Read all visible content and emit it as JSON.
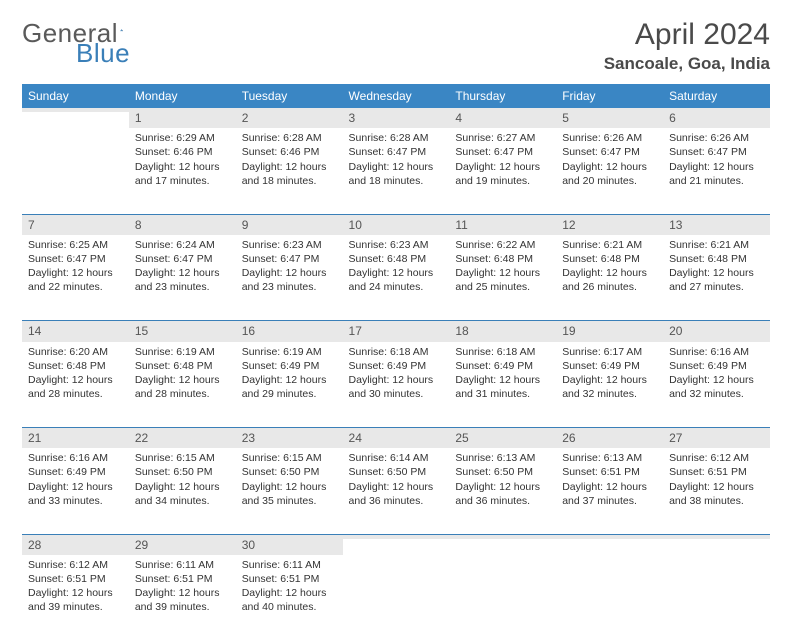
{
  "logo": {
    "text1": "General",
    "text2": "Blue"
  },
  "title": "April 2024",
  "location": "Sancoale, Goa, India",
  "colors": {
    "header_bg": "#3a86c4",
    "header_text": "#ffffff",
    "daynum_bg": "#e8e8e8",
    "rule": "#3a7fb8",
    "logo_gray": "#5a5a5a",
    "logo_blue": "#3a7fb8"
  },
  "weekdays": [
    "Sunday",
    "Monday",
    "Tuesday",
    "Wednesday",
    "Thursday",
    "Friday",
    "Saturday"
  ],
  "weeks": [
    {
      "days": [
        {
          "num": "",
          "lines": []
        },
        {
          "num": "1",
          "lines": [
            "Sunrise: 6:29 AM",
            "Sunset: 6:46 PM",
            "Daylight: 12 hours and 17 minutes."
          ]
        },
        {
          "num": "2",
          "lines": [
            "Sunrise: 6:28 AM",
            "Sunset: 6:46 PM",
            "Daylight: 12 hours and 18 minutes."
          ]
        },
        {
          "num": "3",
          "lines": [
            "Sunrise: 6:28 AM",
            "Sunset: 6:47 PM",
            "Daylight: 12 hours and 18 minutes."
          ]
        },
        {
          "num": "4",
          "lines": [
            "Sunrise: 6:27 AM",
            "Sunset: 6:47 PM",
            "Daylight: 12 hours and 19 minutes."
          ]
        },
        {
          "num": "5",
          "lines": [
            "Sunrise: 6:26 AM",
            "Sunset: 6:47 PM",
            "Daylight: 12 hours and 20 minutes."
          ]
        },
        {
          "num": "6",
          "lines": [
            "Sunrise: 6:26 AM",
            "Sunset: 6:47 PM",
            "Daylight: 12 hours and 21 minutes."
          ]
        }
      ]
    },
    {
      "days": [
        {
          "num": "7",
          "lines": [
            "Sunrise: 6:25 AM",
            "Sunset: 6:47 PM",
            "Daylight: 12 hours and 22 minutes."
          ]
        },
        {
          "num": "8",
          "lines": [
            "Sunrise: 6:24 AM",
            "Sunset: 6:47 PM",
            "Daylight: 12 hours and 23 minutes."
          ]
        },
        {
          "num": "9",
          "lines": [
            "Sunrise: 6:23 AM",
            "Sunset: 6:47 PM",
            "Daylight: 12 hours and 23 minutes."
          ]
        },
        {
          "num": "10",
          "lines": [
            "Sunrise: 6:23 AM",
            "Sunset: 6:48 PM",
            "Daylight: 12 hours and 24 minutes."
          ]
        },
        {
          "num": "11",
          "lines": [
            "Sunrise: 6:22 AM",
            "Sunset: 6:48 PM",
            "Daylight: 12 hours and 25 minutes."
          ]
        },
        {
          "num": "12",
          "lines": [
            "Sunrise: 6:21 AM",
            "Sunset: 6:48 PM",
            "Daylight: 12 hours and 26 minutes."
          ]
        },
        {
          "num": "13",
          "lines": [
            "Sunrise: 6:21 AM",
            "Sunset: 6:48 PM",
            "Daylight: 12 hours and 27 minutes."
          ]
        }
      ]
    },
    {
      "days": [
        {
          "num": "14",
          "lines": [
            "Sunrise: 6:20 AM",
            "Sunset: 6:48 PM",
            "Daylight: 12 hours and 28 minutes."
          ]
        },
        {
          "num": "15",
          "lines": [
            "Sunrise: 6:19 AM",
            "Sunset: 6:48 PM",
            "Daylight: 12 hours and 28 minutes."
          ]
        },
        {
          "num": "16",
          "lines": [
            "Sunrise: 6:19 AM",
            "Sunset: 6:49 PM",
            "Daylight: 12 hours and 29 minutes."
          ]
        },
        {
          "num": "17",
          "lines": [
            "Sunrise: 6:18 AM",
            "Sunset: 6:49 PM",
            "Daylight: 12 hours and 30 minutes."
          ]
        },
        {
          "num": "18",
          "lines": [
            "Sunrise: 6:18 AM",
            "Sunset: 6:49 PM",
            "Daylight: 12 hours and 31 minutes."
          ]
        },
        {
          "num": "19",
          "lines": [
            "Sunrise: 6:17 AM",
            "Sunset: 6:49 PM",
            "Daylight: 12 hours and 32 minutes."
          ]
        },
        {
          "num": "20",
          "lines": [
            "Sunrise: 6:16 AM",
            "Sunset: 6:49 PM",
            "Daylight: 12 hours and 32 minutes."
          ]
        }
      ]
    },
    {
      "days": [
        {
          "num": "21",
          "lines": [
            "Sunrise: 6:16 AM",
            "Sunset: 6:49 PM",
            "Daylight: 12 hours and 33 minutes."
          ]
        },
        {
          "num": "22",
          "lines": [
            "Sunrise: 6:15 AM",
            "Sunset: 6:50 PM",
            "Daylight: 12 hours and 34 minutes."
          ]
        },
        {
          "num": "23",
          "lines": [
            "Sunrise: 6:15 AM",
            "Sunset: 6:50 PM",
            "Daylight: 12 hours and 35 minutes."
          ]
        },
        {
          "num": "24",
          "lines": [
            "Sunrise: 6:14 AM",
            "Sunset: 6:50 PM",
            "Daylight: 12 hours and 36 minutes."
          ]
        },
        {
          "num": "25",
          "lines": [
            "Sunrise: 6:13 AM",
            "Sunset: 6:50 PM",
            "Daylight: 12 hours and 36 minutes."
          ]
        },
        {
          "num": "26",
          "lines": [
            "Sunrise: 6:13 AM",
            "Sunset: 6:51 PM",
            "Daylight: 12 hours and 37 minutes."
          ]
        },
        {
          "num": "27",
          "lines": [
            "Sunrise: 6:12 AM",
            "Sunset: 6:51 PM",
            "Daylight: 12 hours and 38 minutes."
          ]
        }
      ]
    },
    {
      "days": [
        {
          "num": "28",
          "lines": [
            "Sunrise: 6:12 AM",
            "Sunset: 6:51 PM",
            "Daylight: 12 hours and 39 minutes."
          ]
        },
        {
          "num": "29",
          "lines": [
            "Sunrise: 6:11 AM",
            "Sunset: 6:51 PM",
            "Daylight: 12 hours and 39 minutes."
          ]
        },
        {
          "num": "30",
          "lines": [
            "Sunrise: 6:11 AM",
            "Sunset: 6:51 PM",
            "Daylight: 12 hours and 40 minutes."
          ]
        },
        {
          "num": "",
          "lines": []
        },
        {
          "num": "",
          "lines": []
        },
        {
          "num": "",
          "lines": []
        },
        {
          "num": "",
          "lines": []
        }
      ]
    }
  ]
}
